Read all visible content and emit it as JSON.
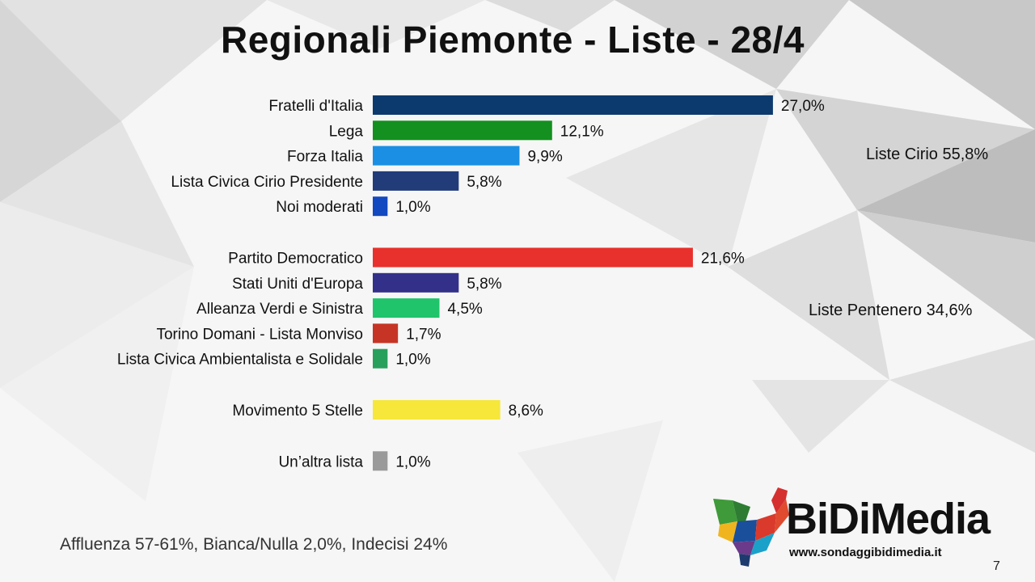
{
  "header": {
    "title": "Regionali Piemonte - Liste - 28/4"
  },
  "chart_data": {
    "type": "bar",
    "orientation": "horizontal",
    "title": "Regionali Piemonte - Liste - 28/4",
    "xlim": [
      0,
      30
    ],
    "grid": false,
    "legend": "none",
    "bars": [
      {
        "category": "Fratelli d'Italia",
        "value": 27.0,
        "label": "27,0%",
        "color": "#0d3a6e",
        "group": 0
      },
      {
        "category": "Lega",
        "value": 12.1,
        "label": "12,1%",
        "color": "#13901f",
        "group": 0
      },
      {
        "category": "Forza Italia",
        "value": 9.9,
        "label": "9,9%",
        "color": "#1a8fe3",
        "group": 0
      },
      {
        "category": "Lista Civica Cirio Presidente",
        "value": 5.8,
        "label": "5,8%",
        "color": "#223c7a",
        "group": 0
      },
      {
        "category": "Noi moderati",
        "value": 1.0,
        "label": "1,0%",
        "color": "#1248c0",
        "group": 0
      },
      {
        "category": "Partito Democratico",
        "value": 21.6,
        "label": "21,6%",
        "color": "#e8302c",
        "group": 1
      },
      {
        "category": "Stati Uniti d'Europa",
        "value": 5.8,
        "label": "5,8%",
        "color": "#33308a",
        "group": 1
      },
      {
        "category": "Alleanza Verdi e Sinistra",
        "value": 4.5,
        "label": "4,5%",
        "color": "#1fc46b",
        "group": 1
      },
      {
        "category": "Torino Domani - Lista Monviso",
        "value": 1.7,
        "label": "1,7%",
        "color": "#c63426",
        "group": 1
      },
      {
        "category": "Lista Civica Ambientalista e Solidale",
        "value": 1.0,
        "label": "1,0%",
        "color": "#27a05c",
        "group": 1
      },
      {
        "category": "Movimento 5 Stelle",
        "value": 8.6,
        "label": "8,6%",
        "color": "#f6e73a",
        "group": 2
      },
      {
        "category": "Un’altra lista",
        "value": 1.0,
        "label": "1,0%",
        "color": "#9a9a9a",
        "group": 3
      }
    ],
    "annotations": [
      {
        "text": "Liste Cirio 55,8%"
      },
      {
        "text": "Liste Pentenero 34,6%"
      }
    ]
  },
  "footer": {
    "note": "Affluenza 57-61%, Bianca/Nulla 2,0%, Indecisi 24%",
    "page": "7"
  },
  "logo": {
    "wordmark": "BiDiMedia",
    "url": "www.sondaggibidimedia.it"
  }
}
